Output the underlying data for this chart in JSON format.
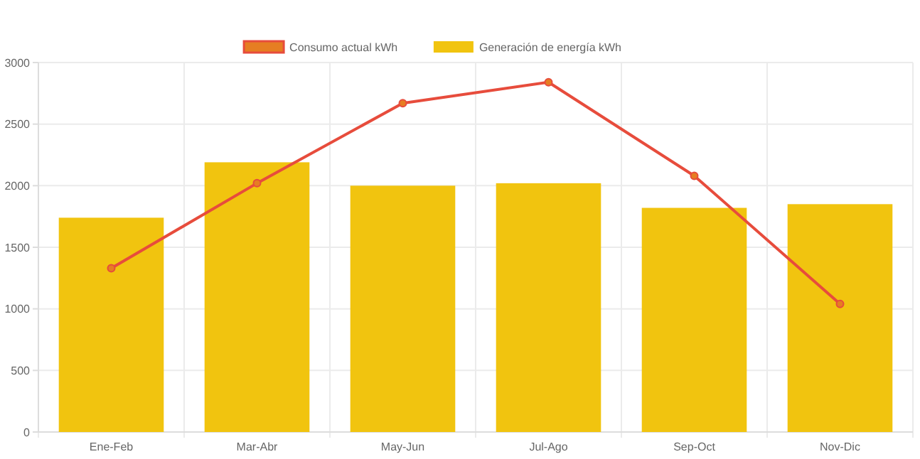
{
  "chart_data": {
    "type": "bar",
    "categories": [
      "Ene-Feb",
      "Mar-Abr",
      "May-Jun",
      "Jul-Ago",
      "Sep-Oct",
      "Nov-Dic"
    ],
    "series": [
      {
        "name": "Consumo actual kWh",
        "type": "line",
        "color": "#e74c3c",
        "values": [
          1330,
          2020,
          2670,
          2840,
          2080,
          1040
        ]
      },
      {
        "name": "Generación de energía kWh",
        "color": "#f1c40f",
        "values": [
          1740,
          2190,
          2000,
          2020,
          1820,
          1850
        ]
      }
    ],
    "ylim": [
      0,
      3000
    ],
    "yticks": [
      0,
      500,
      1000,
      1500,
      2000,
      2500,
      3000
    ],
    "grid": true,
    "legend": "top",
    "marker": "circle"
  }
}
